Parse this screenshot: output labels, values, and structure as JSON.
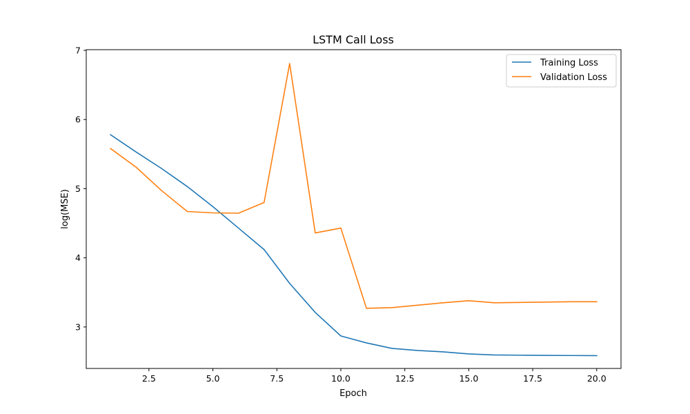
{
  "chart_data": {
    "type": "line",
    "title": "LSTM Call Loss",
    "xlabel": "Epoch",
    "ylabel": "log(MSE)",
    "x": [
      1,
      2,
      3,
      4,
      5,
      6,
      7,
      8,
      9,
      10,
      11,
      12,
      13,
      14,
      15,
      16,
      17,
      18,
      19,
      20
    ],
    "xlim": [
      0.05,
      20.95
    ],
    "ylim": [
      2.4,
      7.01
    ],
    "x_ticks": [
      2.5,
      5.0,
      7.5,
      10.0,
      12.5,
      15.0,
      17.5,
      20.0
    ],
    "x_tick_labels": [
      "2.5",
      "5.0",
      "7.5",
      "10.0",
      "12.5",
      "15.0",
      "17.5",
      "20.0"
    ],
    "y_ticks": [
      3,
      4,
      5,
      6,
      7
    ],
    "y_tick_labels": [
      "3",
      "4",
      "5",
      "6",
      "7"
    ],
    "grid": false,
    "legend_position": "top-right",
    "series": [
      {
        "name": "Training Loss",
        "color": "#1f77b4",
        "values": [
          5.78,
          5.53,
          5.29,
          5.03,
          4.74,
          4.43,
          4.12,
          3.63,
          3.21,
          2.87,
          2.77,
          2.69,
          2.66,
          2.64,
          2.61,
          2.595,
          2.592,
          2.589,
          2.587,
          2.585
        ]
      },
      {
        "name": "Validation Loss",
        "color": "#ff7f0e",
        "values": [
          5.58,
          5.31,
          4.97,
          4.67,
          4.65,
          4.645,
          4.8,
          6.81,
          4.36,
          4.43,
          3.27,
          3.28,
          3.315,
          3.35,
          3.38,
          3.35,
          3.355,
          3.36,
          3.365,
          3.365
        ]
      }
    ]
  }
}
